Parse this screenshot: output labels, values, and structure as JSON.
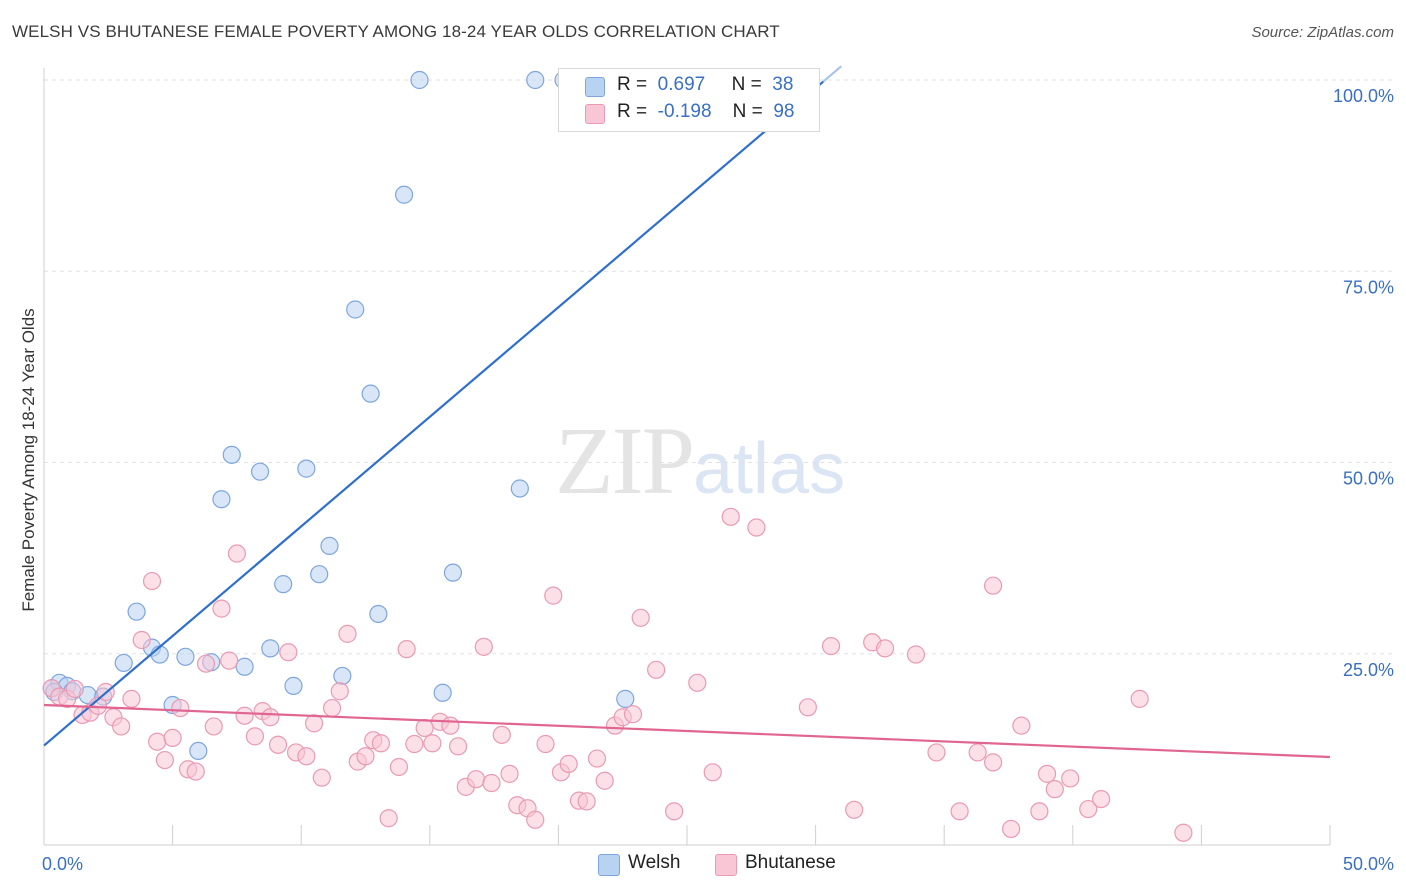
{
  "title": "WELSH VS BHUTANESE FEMALE POVERTY AMONG 18-24 YEAR OLDS CORRELATION CHART",
  "source": "Source: ZipAtlas.com",
  "watermark": {
    "zip": "ZIP",
    "atlas": "atlas"
  },
  "legend": {
    "welsh": {
      "r_label": "R =",
      "r_value": "0.697",
      "n_label": "N =",
      "n_value": "38"
    },
    "bhutanese": {
      "r_label": "R =",
      "r_value": "-0.198",
      "n_label": "N =",
      "n_value": "98"
    }
  },
  "colors": {
    "welsh_fill": "#b8d2f2",
    "welsh_stroke": "#7ea6dd",
    "welsh_line": "#2f6fcc",
    "bhutanese_fill": "#f8c6d5",
    "bhutanese_stroke": "#ea9ab3",
    "bhutanese_line": "#e06591",
    "tick_label": "#3a6fc4",
    "grid": "#e2e2e2"
  },
  "chart_data": {
    "type": "scatter",
    "title": "WELSH VS BHUTANESE FEMALE POVERTY AMONG 18-24 YEAR OLDS CORRELATION CHART",
    "xlabel": "",
    "ylabel": "Female Poverty Among 18-24 Year Olds",
    "xlim": [
      0,
      50
    ],
    "ylim": [
      0,
      100
    ],
    "x_tick_labels": [
      {
        "value": 0,
        "label": "0.0%"
      },
      {
        "value": 50,
        "label": "50.0%"
      }
    ],
    "y_tick_labels": [
      {
        "value": 100,
        "label": "100.0%"
      },
      {
        "value": 75,
        "label": "75.0%"
      },
      {
        "value": 50,
        "label": "50.0%"
      },
      {
        "value": 25,
        "label": "25.0%"
      }
    ],
    "grid": true,
    "legend_placement": "bottom",
    "series": [
      {
        "name": "Welsh",
        "points": [
          [
            0.3,
            20.5
          ],
          [
            0.6,
            21.2
          ],
          [
            0.9,
            20.8
          ],
          [
            1.1,
            20.1
          ],
          [
            1.7,
            19.6
          ],
          [
            2.3,
            19.4
          ],
          [
            3.1,
            23.8
          ],
          [
            3.6,
            30.5
          ],
          [
            4.2,
            25.8
          ],
          [
            4.5,
            24.9
          ],
          [
            5.0,
            18.3
          ],
          [
            5.5,
            24.6
          ],
          [
            6.0,
            12.3
          ],
          [
            6.5,
            23.9
          ],
          [
            6.9,
            45.2
          ],
          [
            7.3,
            51.0
          ],
          [
            7.8,
            23.3
          ],
          [
            8.4,
            48.8
          ],
          [
            8.8,
            25.7
          ],
          [
            9.3,
            34.1
          ],
          [
            9.7,
            20.8
          ],
          [
            10.2,
            49.2
          ],
          [
            10.7,
            35.4
          ],
          [
            11.1,
            39.1
          ],
          [
            11.6,
            22.1
          ],
          [
            12.1,
            70.0
          ],
          [
            12.7,
            59.0
          ],
          [
            13.0,
            30.2
          ],
          [
            14.0,
            85.0
          ],
          [
            14.6,
            100.0
          ],
          [
            15.5,
            19.9
          ],
          [
            15.9,
            35.6
          ],
          [
            18.5,
            46.6
          ],
          [
            19.1,
            100.0
          ],
          [
            20.2,
            100.0
          ],
          [
            22.6,
            19.1
          ],
          [
            26.3,
            100.0
          ],
          [
            0.4,
            20.0
          ]
        ],
        "trend": {
          "x": [
            0,
            30.3
          ],
          "y": [
            13.0,
            99.8
          ]
        }
      },
      {
        "name": "Bhutanese",
        "points": [
          [
            0.3,
            20.5
          ],
          [
            0.6,
            19.4
          ],
          [
            0.9,
            19.1
          ],
          [
            1.2,
            20.4
          ],
          [
            1.5,
            17.0
          ],
          [
            1.8,
            17.3
          ],
          [
            2.1,
            18.2
          ],
          [
            2.4,
            20.0
          ],
          [
            2.7,
            16.7
          ],
          [
            3.0,
            15.5
          ],
          [
            3.4,
            19.1
          ],
          [
            3.8,
            26.8
          ],
          [
            4.2,
            34.5
          ],
          [
            4.4,
            13.5
          ],
          [
            4.7,
            11.1
          ],
          [
            5.0,
            14.0
          ],
          [
            5.3,
            17.9
          ],
          [
            5.6,
            9.9
          ],
          [
            5.9,
            9.6
          ],
          [
            6.3,
            23.7
          ],
          [
            6.6,
            15.5
          ],
          [
            6.9,
            30.9
          ],
          [
            7.2,
            24.1
          ],
          [
            7.5,
            38.1
          ],
          [
            7.8,
            16.9
          ],
          [
            8.2,
            14.2
          ],
          [
            8.5,
            17.5
          ],
          [
            8.8,
            16.7
          ],
          [
            9.1,
            13.1
          ],
          [
            9.5,
            25.2
          ],
          [
            9.8,
            12.1
          ],
          [
            10.2,
            11.6
          ],
          [
            10.5,
            15.9
          ],
          [
            10.8,
            8.8
          ],
          [
            11.2,
            17.9
          ],
          [
            11.5,
            20.1
          ],
          [
            11.8,
            27.6
          ],
          [
            12.2,
            10.9
          ],
          [
            12.5,
            11.6
          ],
          [
            12.8,
            13.7
          ],
          [
            13.1,
            13.3
          ],
          [
            13.4,
            3.5
          ],
          [
            13.8,
            10.2
          ],
          [
            14.1,
            25.6
          ],
          [
            14.4,
            13.2
          ],
          [
            14.8,
            15.3
          ],
          [
            15.1,
            13.3
          ],
          [
            15.4,
            16.1
          ],
          [
            15.8,
            15.6
          ],
          [
            16.1,
            12.9
          ],
          [
            16.4,
            7.6
          ],
          [
            16.8,
            8.6
          ],
          [
            17.1,
            25.9
          ],
          [
            17.4,
            8.1
          ],
          [
            17.8,
            14.4
          ],
          [
            18.1,
            9.3
          ],
          [
            18.4,
            5.2
          ],
          [
            18.8,
            4.8
          ],
          [
            19.1,
            3.3
          ],
          [
            19.5,
            13.2
          ],
          [
            19.8,
            32.6
          ],
          [
            20.1,
            9.5
          ],
          [
            20.4,
            10.6
          ],
          [
            20.8,
            5.8
          ],
          [
            21.1,
            5.7
          ],
          [
            21.5,
            11.3
          ],
          [
            21.8,
            8.4
          ],
          [
            22.2,
            15.6
          ],
          [
            22.5,
            16.7
          ],
          [
            22.9,
            17.1
          ],
          [
            23.2,
            29.7
          ],
          [
            23.8,
            22.9
          ],
          [
            24.5,
            4.4
          ],
          [
            25.4,
            21.2
          ],
          [
            26.0,
            9.5
          ],
          [
            26.7,
            42.9
          ],
          [
            27.7,
            41.5
          ],
          [
            29.7,
            18.0
          ],
          [
            30.6,
            26.0
          ],
          [
            31.5,
            4.6
          ],
          [
            32.2,
            26.5
          ],
          [
            32.7,
            25.7
          ],
          [
            33.9,
            24.9
          ],
          [
            34.7,
            12.1
          ],
          [
            35.6,
            4.4
          ],
          [
            36.3,
            12.1
          ],
          [
            36.9,
            10.8
          ],
          [
            37.6,
            2.1
          ],
          [
            38.0,
            15.6
          ],
          [
            38.7,
            4.4
          ],
          [
            39.0,
            9.3
          ],
          [
            39.3,
            7.3
          ],
          [
            39.9,
            8.7
          ],
          [
            40.6,
            4.7
          ],
          [
            41.1,
            6.0
          ],
          [
            42.6,
            19.1
          ],
          [
            44.3,
            1.6
          ],
          [
            36.9,
            33.9
          ]
        ],
        "trend": {
          "x": [
            0,
            50
          ],
          "y": [
            18.3,
            11.5
          ]
        }
      }
    ]
  },
  "bottom_legend": {
    "welsh": "Welsh",
    "bhutanese": "Bhutanese"
  }
}
